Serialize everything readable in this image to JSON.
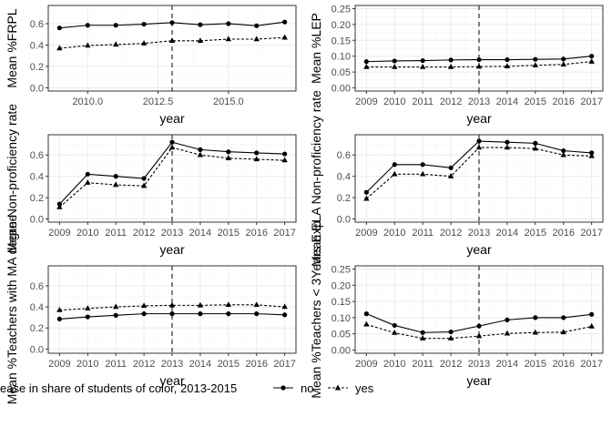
{
  "colors": {
    "panel_border": "#333333",
    "grid_major": "#ebebeb",
    "grid_minor": "#f5f5f5",
    "series_line": "#000000",
    "vline": "#000000"
  },
  "legend": {
    "title": "ease in share of students of color, 2013-2015",
    "items": [
      {
        "label": "no",
        "linestyle": "solid",
        "marker": "circle"
      },
      {
        "label": "yes",
        "linestyle": "dashed",
        "marker": "triangle"
      }
    ]
  },
  "chart_data": [
    {
      "type": "line",
      "xlabel": "year",
      "ylabel": "Mean %FRPL",
      "xlim": [
        2008.6,
        2017.4
      ],
      "ylim": [
        -0.03,
        0.77
      ],
      "xticks": [
        2010,
        2012.5,
        2015
      ],
      "xtick_labels": [
        "2010.0",
        "2012.5",
        "2015.0"
      ],
      "yticks": [
        0,
        0.2,
        0.4,
        0.6
      ],
      "ytick_labels": [
        "0.0",
        "0.2",
        "0.4",
        "0.6"
      ],
      "vline": 2013,
      "x": [
        2009,
        2010,
        2011,
        2012,
        2013,
        2014,
        2015,
        2016,
        2017
      ],
      "series": [
        {
          "name": "no",
          "values": [
            0.56,
            0.585,
            0.585,
            0.595,
            0.61,
            0.59,
            0.6,
            0.58,
            0.615
          ]
        },
        {
          "name": "yes",
          "values": [
            0.37,
            0.395,
            0.405,
            0.415,
            0.44,
            0.44,
            0.455,
            0.455,
            0.47
          ]
        }
      ]
    },
    {
      "type": "line",
      "xlabel": "year",
      "ylabel": "Mean %LEP",
      "xlim": [
        2008.6,
        2017.4
      ],
      "ylim": [
        -0.01,
        0.26
      ],
      "xticks": [
        2009,
        2010,
        2011,
        2012,
        2013,
        2014,
        2015,
        2016,
        2017
      ],
      "xtick_labels": [
        "2009",
        "2010",
        "2011",
        "2012",
        "2013",
        "2014",
        "2015",
        "2016",
        "2017"
      ],
      "yticks": [
        0,
        0.05,
        0.1,
        0.15,
        0.2,
        0.25
      ],
      "ytick_labels": [
        "0.00",
        "0.05",
        "0.10",
        "0.15",
        "0.20",
        "0.25"
      ],
      "vline": 2013,
      "x": [
        2009,
        2010,
        2011,
        2012,
        2013,
        2014,
        2015,
        2016,
        2017
      ],
      "series": [
        {
          "name": "no",
          "values": [
            0.083,
            0.085,
            0.086,
            0.088,
            0.089,
            0.089,
            0.09,
            0.091,
            0.1
          ]
        },
        {
          "name": "yes",
          "values": [
            0.066,
            0.066,
            0.066,
            0.066,
            0.067,
            0.068,
            0.071,
            0.074,
            0.083
          ]
        }
      ]
    },
    {
      "type": "line",
      "xlabel": "year",
      "ylabel": "Mean Non-proficiency rate",
      "xlim": [
        2008.6,
        2017.4
      ],
      "ylim": [
        -0.03,
        0.79
      ],
      "xticks": [
        2009,
        2010,
        2011,
        2012,
        2013,
        2014,
        2015,
        2016,
        2017
      ],
      "xtick_labels": [
        "2009",
        "2010",
        "2011",
        "2012",
        "2013",
        "2014",
        "2015",
        "2016",
        "2017"
      ],
      "yticks": [
        0,
        0.2,
        0.4,
        0.6
      ],
      "ytick_labels": [
        "0.0",
        "0.2",
        "0.4",
        "0.6"
      ],
      "vline": 2013,
      "x": [
        2009,
        2010,
        2011,
        2012,
        2013,
        2014,
        2015,
        2016,
        2017
      ],
      "series": [
        {
          "name": "no",
          "values": [
            0.14,
            0.42,
            0.4,
            0.38,
            0.72,
            0.65,
            0.63,
            0.62,
            0.61
          ]
        },
        {
          "name": "yes",
          "values": [
            0.11,
            0.34,
            0.32,
            0.31,
            0.67,
            0.6,
            0.57,
            0.56,
            0.55
          ]
        }
      ]
    },
    {
      "type": "line",
      "xlabel": "year",
      "ylabel": "Mean ELA Non-proficiency rate",
      "xlim": [
        2008.6,
        2017.4
      ],
      "ylim": [
        -0.03,
        0.79
      ],
      "xticks": [
        2009,
        2010,
        2011,
        2012,
        2013,
        2014,
        2015,
        2016,
        2017
      ],
      "xtick_labels": [
        "2009",
        "2010",
        "2011",
        "2012",
        "2013",
        "2014",
        "2015",
        "2016",
        "2017"
      ],
      "yticks": [
        0,
        0.2,
        0.4,
        0.6
      ],
      "ytick_labels": [
        "0.0",
        "0.2",
        "0.4",
        "0.6"
      ],
      "vline": 2013,
      "x": [
        2009,
        2010,
        2011,
        2012,
        2013,
        2014,
        2015,
        2016,
        2017
      ],
      "series": [
        {
          "name": "no",
          "values": [
            0.25,
            0.51,
            0.51,
            0.48,
            0.73,
            0.72,
            0.71,
            0.64,
            0.62
          ]
        },
        {
          "name": "yes",
          "values": [
            0.19,
            0.42,
            0.42,
            0.4,
            0.67,
            0.67,
            0.66,
            0.6,
            0.59
          ]
        }
      ]
    },
    {
      "type": "line",
      "xlabel": "year",
      "ylabel": "Mean %Teachers with MA degree",
      "xlim": [
        2008.6,
        2017.4
      ],
      "ylim": [
        -0.04,
        0.79
      ],
      "xticks": [
        2009,
        2010,
        2011,
        2012,
        2013,
        2014,
        2015,
        2016,
        2017
      ],
      "xtick_labels": [
        "2009",
        "2010",
        "2011",
        "2012",
        "2013",
        "2014",
        "2015",
        "2016",
        "2017"
      ],
      "yticks": [
        0,
        0.2,
        0.4,
        0.6
      ],
      "ytick_labels": [
        "0.0",
        "0.2",
        "0.4",
        "0.6"
      ],
      "vline": 2013,
      "x": [
        2009,
        2010,
        2011,
        2012,
        2013,
        2014,
        2015,
        2016,
        2017
      ],
      "series": [
        {
          "name": "no",
          "values": [
            0.285,
            0.305,
            0.32,
            0.335,
            0.335,
            0.335,
            0.335,
            0.335,
            0.325
          ]
        },
        {
          "name": "yes",
          "values": [
            0.37,
            0.385,
            0.4,
            0.41,
            0.415,
            0.415,
            0.42,
            0.42,
            0.4
          ]
        }
      ]
    },
    {
      "type": "line",
      "xlabel": "year",
      "ylabel": "Mean %Teachers < 3Years Exp",
      "xlim": [
        2008.6,
        2017.4
      ],
      "ylim": [
        -0.01,
        0.26
      ],
      "xticks": [
        2009,
        2010,
        2011,
        2012,
        2013,
        2014,
        2015,
        2016,
        2017
      ],
      "xtick_labels": [
        "2009",
        "2010",
        "2011",
        "2012",
        "2013",
        "2014",
        "2015",
        "2016",
        "2017"
      ],
      "yticks": [
        0,
        0.05,
        0.1,
        0.15,
        0.2,
        0.25
      ],
      "ytick_labels": [
        "0.00",
        "0.05",
        "0.10",
        "0.15",
        "0.20",
        "0.25"
      ],
      "vline": 2013,
      "x": [
        2009,
        2010,
        2011,
        2012,
        2013,
        2014,
        2015,
        2016,
        2017
      ],
      "series": [
        {
          "name": "no",
          "values": [
            0.112,
            0.076,
            0.054,
            0.056,
            0.074,
            0.093,
            0.1,
            0.1,
            0.11
          ]
        },
        {
          "name": "yes",
          "values": [
            0.079,
            0.053,
            0.036,
            0.036,
            0.043,
            0.051,
            0.054,
            0.055,
            0.073
          ]
        }
      ]
    }
  ]
}
